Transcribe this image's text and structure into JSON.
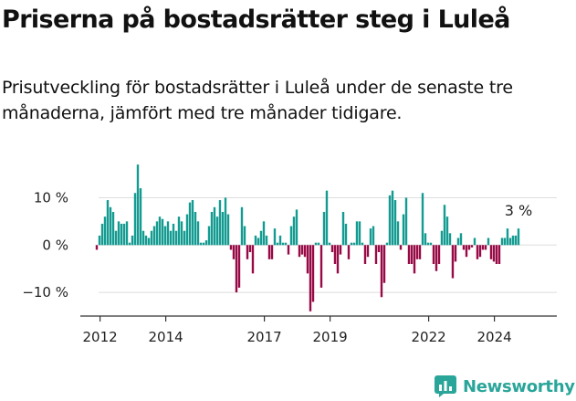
{
  "title": "Priserna på bostadsrätter steg i Luleå",
  "subtitle": "Prisutveckling för bostadsrätter i Luleå under de senaste tre månaderna, jämfört med tre månader tidigare.",
  "brand": {
    "name": "Newsworthy",
    "icon": "newsworthy-logo-icon"
  },
  "colors": {
    "positive": "#149b91",
    "negative": "#970a46",
    "grid": "#dddddd",
    "text": "#222222"
  },
  "chart_data": {
    "type": "bar",
    "title": "Priserna på bostadsrätter steg i Luleå",
    "xlabel": "",
    "ylabel": "",
    "ylim": [
      -15,
      18
    ],
    "x_start": 2011.9,
    "x_step": 0.08333,
    "xlim": [
      2011.4,
      2025.9
    ],
    "y_ticks": [
      {
        "value": 10,
        "label": "10 %"
      },
      {
        "value": 0,
        "label": "0 %"
      },
      {
        "value": -10,
        "label": "−10 %"
      }
    ],
    "x_ticks": [
      {
        "value": 2012,
        "label": "2012"
      },
      {
        "value": 2014,
        "label": "2014"
      },
      {
        "value": 2017,
        "label": "2017"
      },
      {
        "value": 2019,
        "label": "2019"
      },
      {
        "value": 2022,
        "label": "2022"
      },
      {
        "value": 2024,
        "label": "2024"
      }
    ],
    "last_value_label": "3 %",
    "values": [
      -1,
      2,
      4.5,
      6,
      9.5,
      8,
      7,
      3,
      5,
      4.5,
      4.5,
      5,
      0.5,
      2,
      11,
      17,
      12,
      3,
      2,
      1.5,
      3,
      4,
      5,
      6,
      5.5,
      4,
      5,
      3,
      4.5,
      3,
      6,
      5,
      3,
      6.5,
      9,
      9.5,
      7,
      5,
      0.5,
      0.5,
      1,
      4,
      7,
      8,
      6,
      9.5,
      7,
      10,
      6.5,
      -1,
      -3,
      -10,
      -9,
      8,
      4,
      -3,
      -1.5,
      -6,
      2,
      1.5,
      3,
      5,
      2,
      -3,
      -3,
      3.5,
      0.5,
      2,
      0.5,
      0.5,
      -2,
      4,
      6,
      7.5,
      -2.5,
      -2,
      -2.5,
      -6,
      -14,
      -12,
      0.5,
      0.5,
      -9,
      7,
      11.5,
      0.5,
      -1.5,
      -4,
      -6,
      -2,
      7,
      4.5,
      -3,
      0.5,
      0.5,
      5,
      5,
      0.5,
      -4,
      -2.5,
      3.5,
      4,
      -4,
      -1.5,
      -11,
      -8,
      0.5,
      10.5,
      11.5,
      9.5,
      5,
      -1,
      6.5,
      10,
      -4,
      -4,
      -6,
      -3,
      -3,
      11,
      2.5,
      0.5,
      0.5,
      -4,
      -5.5,
      -4,
      3,
      8.5,
      6,
      2.5,
      -7,
      -3.5,
      1.5,
      2.5,
      -1,
      -2.5,
      -1,
      -0.5,
      1.5,
      -3,
      -2.5,
      -1,
      -1,
      1.5,
      -3,
      -3.5,
      -4,
      -4,
      1.5,
      1.5,
      3.5,
      1.5,
      2,
      2,
      3.5
    ]
  }
}
